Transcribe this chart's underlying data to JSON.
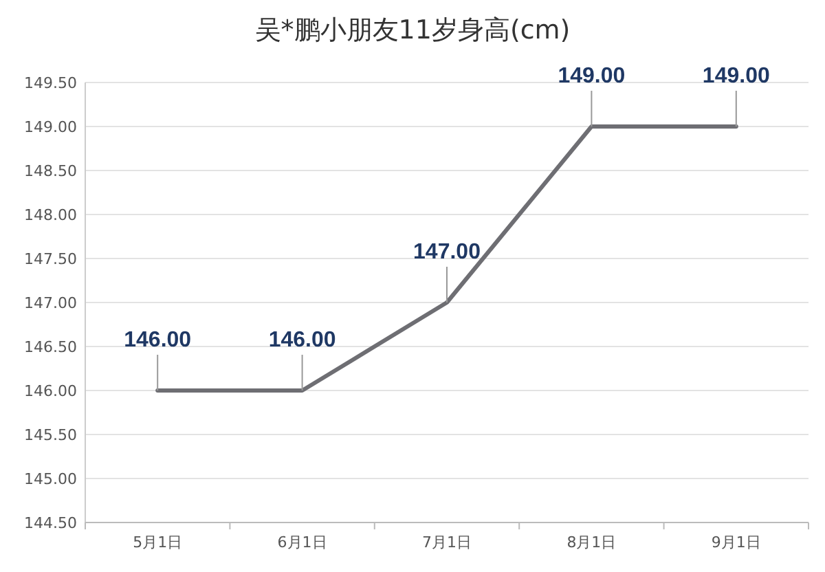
{
  "chart_data": {
    "type": "line",
    "title": "吴*鹏小朋友11岁身高(cm)",
    "categories": [
      "5月1日",
      "6月1日",
      "7月1日",
      "8月1日",
      "9月1日"
    ],
    "series": [
      {
        "color": "#6e6e73",
        "values": [
          146,
          146,
          147,
          149,
          149
        ]
      }
    ],
    "value_labels": [
      "146.00",
      "146.00",
      "147.00",
      "149.00",
      "149.00"
    ],
    "ylim": [
      144.5,
      149.5
    ],
    "yticks": [
      {
        "value": 144.5,
        "label": "144.50"
      },
      {
        "value": 145,
        "label": "145.00"
      },
      {
        "value": 145.5,
        "label": "145.50"
      },
      {
        "value": 146,
        "label": "146.00"
      },
      {
        "value": 146.5,
        "label": "146.50"
      },
      {
        "value": 147,
        "label": "147.00"
      },
      {
        "value": 147.5,
        "label": "147.50"
      },
      {
        "value": 148,
        "label": "148.00"
      },
      {
        "value": 148.5,
        "label": "148.50"
      },
      {
        "value": 149,
        "label": "149.00"
      },
      {
        "value": 149.5,
        "label": "149.50"
      }
    ],
    "grid": "y",
    "marker": "none",
    "line_style": "solid"
  }
}
